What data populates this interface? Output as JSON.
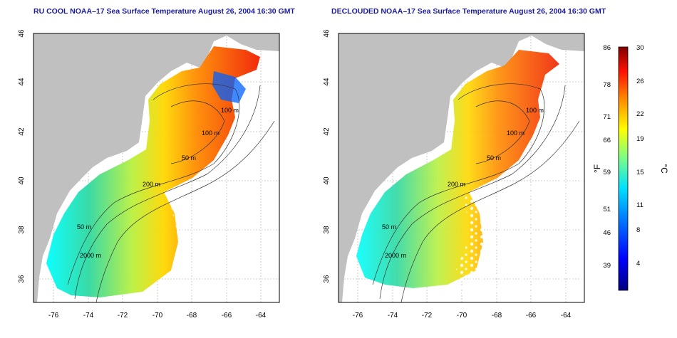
{
  "panels": [
    {
      "title": "RU COOL NOAA–17 Sea Surface Temperature August 26, 2004 16:30 GMT",
      "x_ticks": [
        "-76",
        "-74",
        "-72",
        "-70",
        "-68",
        "-66",
        "-64"
      ],
      "y_ticks": [
        "36",
        "38",
        "40",
        "42",
        "44",
        "46"
      ],
      "contour_labels": [
        "100 m",
        "100 m",
        "50 m",
        "200 m",
        "50 m",
        "2000 m"
      ]
    },
    {
      "title": "DECLOUDED NOAA–17 Sea Surface Temperature August 26, 2004 16:30 GMT",
      "x_ticks": [
        "-76",
        "-74",
        "-72",
        "-70",
        "-68",
        "-66",
        "-64"
      ],
      "y_ticks": [
        "36",
        "38",
        "40",
        "42",
        "44",
        "46"
      ],
      "contour_labels": [
        "100 m",
        "100 m",
        "50 m",
        "200 m",
        "50 m",
        "2000 m"
      ]
    }
  ],
  "colorbar": {
    "fahrenheit_ticks": [
      "86",
      "78",
      "71",
      "66",
      "59",
      "51",
      "46",
      "39"
    ],
    "celsius_ticks": [
      "30",
      "26",
      "22",
      "19",
      "15",
      "11",
      "8",
      "4"
    ],
    "label_f": "°F",
    "label_c": "°C",
    "range_c": [
      0,
      30
    ]
  },
  "colors": {
    "land": "#c0c0c0",
    "title": "#1a1aa0",
    "ramp": [
      "#000080",
      "#0000ff",
      "#0080ff",
      "#00ffff",
      "#80ff80",
      "#ffff00",
      "#ff8000",
      "#ff0000",
      "#800000"
    ]
  }
}
